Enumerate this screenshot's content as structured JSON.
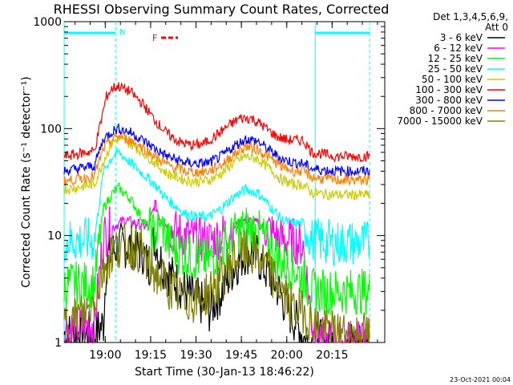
{
  "chart_data": {
    "type": "line",
    "title": "RHESSI Observing Summary Count Rates, Corrected",
    "xlabel": "Start Time (30-Jan-13 18:46:22)",
    "ylabel": "Corrected Count Rate (s⁻¹ detector⁻¹)",
    "y_scale": "log",
    "ylim": [
      1,
      1000
    ],
    "xlim_minutes": [
      0,
      106
    ],
    "x_ticks": [
      {
        "t": 13.6,
        "label": "19:00"
      },
      {
        "t": 28.6,
        "label": "19:15"
      },
      {
        "t": 43.6,
        "label": "19:30"
      },
      {
        "t": 58.6,
        "label": "19:45"
      },
      {
        "t": 73.6,
        "label": "20:00"
      },
      {
        "t": 88.6,
        "label": "20:15"
      }
    ],
    "y_ticks": [
      {
        "v": 1,
        "label": "1"
      },
      {
        "v": 10,
        "label": "10"
      },
      {
        "v": 100,
        "label": "100"
      },
      {
        "v": 1000,
        "label": "1000"
      }
    ],
    "legend_header": [
      "Det 1,3,4,5,6,9,",
      "Att 0"
    ],
    "legend_position": "right",
    "series": [
      {
        "name": "3 - 6 keV",
        "color": "#000000",
        "points": [
          [
            0,
            1.2
          ],
          [
            10,
            1.2
          ],
          [
            13,
            1.5
          ],
          [
            14,
            6
          ],
          [
            16,
            7
          ],
          [
            18,
            8
          ],
          [
            22,
            8
          ],
          [
            26,
            7
          ],
          [
            28,
            5
          ],
          [
            30,
            10
          ],
          [
            31,
            7
          ],
          [
            33,
            5
          ],
          [
            36,
            4
          ],
          [
            40,
            3
          ],
          [
            44,
            2.5
          ],
          [
            48,
            2
          ],
          [
            52,
            3
          ],
          [
            56,
            5
          ],
          [
            60,
            7
          ],
          [
            63,
            7
          ],
          [
            66,
            5
          ],
          [
            70,
            3.5
          ],
          [
            74,
            2
          ],
          [
            77,
            1.5
          ],
          [
            80,
            1
          ],
          [
            85,
            1
          ],
          [
            90,
            1
          ],
          [
            95,
            1
          ],
          [
            100,
            1
          ]
        ]
      },
      {
        "name": "6 - 12 keV",
        "color": "#ff00ff",
        "points": [
          [
            0,
            1.3
          ],
          [
            10,
            1.5
          ],
          [
            13,
            10
          ],
          [
            16,
            12
          ],
          [
            20,
            14
          ],
          [
            24,
            13
          ],
          [
            28,
            12
          ],
          [
            30,
            20
          ],
          [
            32,
            14
          ],
          [
            36,
            11
          ],
          [
            40,
            10
          ],
          [
            44,
            9
          ],
          [
            48,
            9
          ],
          [
            52,
            10
          ],
          [
            56,
            12
          ],
          [
            60,
            14
          ],
          [
            64,
            13
          ],
          [
            68,
            11
          ],
          [
            72,
            9
          ],
          [
            76,
            9
          ],
          [
            79,
            8
          ],
          [
            82,
            1.5
          ],
          [
            86,
            1
          ],
          [
            100,
            1
          ]
        ]
      },
      {
        "name": "12 - 25 keV",
        "color": "#00ff00",
        "points": [
          [
            0,
            3.5
          ],
          [
            10,
            3.5
          ],
          [
            13,
            18
          ],
          [
            16,
            25
          ],
          [
            18,
            28
          ],
          [
            22,
            22
          ],
          [
            26,
            14
          ],
          [
            30,
            10
          ],
          [
            32,
            13
          ],
          [
            35,
            8
          ],
          [
            40,
            6.5
          ],
          [
            44,
            6
          ],
          [
            48,
            6
          ],
          [
            52,
            7.5
          ],
          [
            56,
            10
          ],
          [
            60,
            12
          ],
          [
            64,
            11
          ],
          [
            68,
            8
          ],
          [
            72,
            5.5
          ],
          [
            76,
            5
          ],
          [
            79,
            4
          ],
          [
            82,
            3
          ],
          [
            90,
            3
          ],
          [
            100,
            3
          ]
        ]
      },
      {
        "name": "25 - 50 keV",
        "color": "#00ffff",
        "points": [
          [
            0,
            9
          ],
          [
            10,
            9
          ],
          [
            13,
            40
          ],
          [
            16,
            55
          ],
          [
            18,
            60
          ],
          [
            22,
            48
          ],
          [
            26,
            38
          ],
          [
            30,
            30
          ],
          [
            34,
            22
          ],
          [
            40,
            16
          ],
          [
            44,
            15
          ],
          [
            48,
            15
          ],
          [
            52,
            18
          ],
          [
            56,
            23
          ],
          [
            60,
            27
          ],
          [
            64,
            25
          ],
          [
            68,
            19
          ],
          [
            72,
            14
          ],
          [
            76,
            13
          ],
          [
            79,
            13
          ],
          [
            82,
            9
          ],
          [
            90,
            8.5
          ],
          [
            100,
            8.5
          ]
        ]
      },
      {
        "name": "50 - 100 keV",
        "color": "#cccc00",
        "points": [
          [
            0,
            27
          ],
          [
            10,
            30
          ],
          [
            13,
            50
          ],
          [
            16,
            75
          ],
          [
            18,
            80
          ],
          [
            22,
            72
          ],
          [
            26,
            60
          ],
          [
            30,
            48
          ],
          [
            34,
            38
          ],
          [
            40,
            33
          ],
          [
            44,
            32
          ],
          [
            48,
            33
          ],
          [
            52,
            38
          ],
          [
            56,
            48
          ],
          [
            60,
            55
          ],
          [
            64,
            52
          ],
          [
            68,
            42
          ],
          [
            72,
            33
          ],
          [
            76,
            30
          ],
          [
            79,
            30
          ],
          [
            82,
            25
          ],
          [
            90,
            24
          ],
          [
            100,
            24
          ]
        ]
      },
      {
        "name": "100 - 300 keV",
        "color": "#ff0000",
        "points": [
          [
            0,
            55
          ],
          [
            10,
            62
          ],
          [
            13,
            150
          ],
          [
            14,
            200
          ],
          [
            16,
            240
          ],
          [
            18,
            250
          ],
          [
            22,
            220
          ],
          [
            26,
            170
          ],
          [
            30,
            120
          ],
          [
            34,
            90
          ],
          [
            38,
            75
          ],
          [
            42,
            70
          ],
          [
            46,
            72
          ],
          [
            50,
            85
          ],
          [
            54,
            105
          ],
          [
            58,
            125
          ],
          [
            62,
            125
          ],
          [
            66,
            105
          ],
          [
            70,
            85
          ],
          [
            74,
            78
          ],
          [
            79,
            78
          ],
          [
            82,
            60
          ],
          [
            90,
            55
          ],
          [
            100,
            55
          ]
        ]
      },
      {
        "name": "300 - 800 keV",
        "color": "#0000ff",
        "points": [
          [
            0,
            40
          ],
          [
            10,
            45
          ],
          [
            13,
            80
          ],
          [
            16,
            95
          ],
          [
            18,
            100
          ],
          [
            22,
            92
          ],
          [
            26,
            78
          ],
          [
            30,
            65
          ],
          [
            34,
            55
          ],
          [
            40,
            48
          ],
          [
            44,
            47
          ],
          [
            48,
            48
          ],
          [
            52,
            55
          ],
          [
            56,
            68
          ],
          [
            60,
            80
          ],
          [
            64,
            76
          ],
          [
            68,
            62
          ],
          [
            72,
            52
          ],
          [
            76,
            48
          ],
          [
            79,
            47
          ],
          [
            82,
            42
          ],
          [
            90,
            40
          ],
          [
            100,
            40
          ]
        ]
      },
      {
        "name": "800 - 7000 keV",
        "color": "#ff8000",
        "points": [
          [
            0,
            32
          ],
          [
            10,
            36
          ],
          [
            13,
            65
          ],
          [
            16,
            80
          ],
          [
            18,
            85
          ],
          [
            22,
            78
          ],
          [
            26,
            66
          ],
          [
            30,
            55
          ],
          [
            34,
            46
          ],
          [
            40,
            40
          ],
          [
            44,
            39
          ],
          [
            48,
            40
          ],
          [
            52,
            46
          ],
          [
            56,
            57
          ],
          [
            60,
            68
          ],
          [
            64,
            64
          ],
          [
            68,
            53
          ],
          [
            72,
            44
          ],
          [
            76,
            40
          ],
          [
            79,
            40
          ],
          [
            82,
            35
          ],
          [
            90,
            33
          ],
          [
            100,
            33
          ]
        ]
      },
      {
        "name": "7000 - 15000 keV",
        "color": "#808000",
        "points": [
          [
            0,
            1.5
          ],
          [
            8,
            2
          ],
          [
            11,
            3
          ],
          [
            13,
            5
          ],
          [
            16,
            7
          ],
          [
            18,
            8
          ],
          [
            22,
            8
          ],
          [
            26,
            7
          ],
          [
            28,
            5
          ],
          [
            32,
            4
          ],
          [
            36,
            3
          ],
          [
            40,
            2.5
          ],
          [
            44,
            2.5
          ],
          [
            48,
            3
          ],
          [
            52,
            4
          ],
          [
            56,
            6
          ],
          [
            60,
            7
          ],
          [
            64,
            6.5
          ],
          [
            68,
            4.5
          ],
          [
            72,
            3
          ],
          [
            76,
            2
          ],
          [
            79,
            2
          ],
          [
            82,
            1.5
          ],
          [
            90,
            1.2
          ],
          [
            100,
            1.2
          ]
        ]
      }
    ],
    "attenuator_bars": [
      {
        "t0": 0,
        "t1": 17,
        "label": "N"
      },
      {
        "t0": 83,
        "t1": 101,
        "label": ""
      }
    ],
    "flag_label": "F",
    "timestamp": "23-Oct-2021 00:04"
  }
}
